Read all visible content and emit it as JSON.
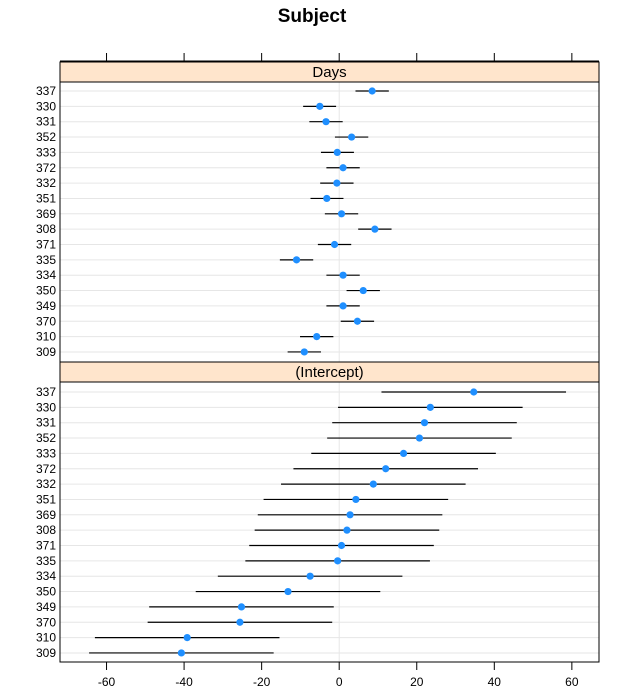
{
  "chart_data": {
    "type": "dotplot-with-intervals",
    "title": "Subject",
    "xlim": [
      -72,
      67
    ],
    "x_ticks": [
      -60,
      -40,
      -20,
      0,
      20,
      40,
      60
    ],
    "x_tick_labels": [
      "-60",
      "-40",
      "-20",
      "0",
      "20",
      "40",
      "60"
    ],
    "subjects": [
      "337",
      "330",
      "331",
      "352",
      "333",
      "372",
      "332",
      "351",
      "369",
      "308",
      "371",
      "335",
      "334",
      "350",
      "349",
      "370",
      "310",
      "309"
    ],
    "panels": [
      {
        "name": "Days",
        "points": [
          {
            "subject": "337",
            "value": 8.5,
            "lower": 4.2,
            "upper": 12.8
          },
          {
            "subject": "330",
            "value": -5.0,
            "lower": -9.3,
            "upper": -0.8
          },
          {
            "subject": "331",
            "value": -3.4,
            "lower": -7.7,
            "upper": 0.9
          },
          {
            "subject": "352",
            "value": 3.2,
            "lower": -1.1,
            "upper": 7.5
          },
          {
            "subject": "333",
            "value": -0.5,
            "lower": -4.7,
            "upper": 3.8
          },
          {
            "subject": "372",
            "value": 1.0,
            "lower": -3.3,
            "upper": 5.3
          },
          {
            "subject": "332",
            "value": -0.6,
            "lower": -4.9,
            "upper": 3.7
          },
          {
            "subject": "351",
            "value": -3.2,
            "lower": -7.4,
            "upper": 1.1
          },
          {
            "subject": "369",
            "value": 0.6,
            "lower": -3.7,
            "upper": 4.9
          },
          {
            "subject": "308",
            "value": 9.2,
            "lower": 4.9,
            "upper": 13.5
          },
          {
            "subject": "371",
            "value": -1.2,
            "lower": -5.5,
            "upper": 3.1
          },
          {
            "subject": "335",
            "value": -11.0,
            "lower": -15.3,
            "upper": -6.7
          },
          {
            "subject": "334",
            "value": 1.0,
            "lower": -3.3,
            "upper": 5.3
          },
          {
            "subject": "350",
            "value": 6.2,
            "lower": 1.9,
            "upper": 10.5
          },
          {
            "subject": "349",
            "value": 1.0,
            "lower": -3.3,
            "upper": 5.3
          },
          {
            "subject": "370",
            "value": 4.7,
            "lower": 0.4,
            "upper": 9.0
          },
          {
            "subject": "310",
            "value": -5.8,
            "lower": -10.1,
            "upper": -1.5
          },
          {
            "subject": "309",
            "value": -9.0,
            "lower": -13.3,
            "upper": -4.7
          }
        ]
      },
      {
        "name": "(Intercept)",
        "points": [
          {
            "subject": "337",
            "value": 34.7,
            "lower": 10.9,
            "upper": 58.5
          },
          {
            "subject": "330",
            "value": 23.5,
            "lower": -0.3,
            "upper": 47.3
          },
          {
            "subject": "331",
            "value": 22.0,
            "lower": -1.8,
            "upper": 45.8
          },
          {
            "subject": "352",
            "value": 20.7,
            "lower": -3.1,
            "upper": 44.5
          },
          {
            "subject": "333",
            "value": 16.6,
            "lower": -7.2,
            "upper": 40.4
          },
          {
            "subject": "372",
            "value": 12.0,
            "lower": -11.8,
            "upper": 35.8
          },
          {
            "subject": "332",
            "value": 8.8,
            "lower": -15.0,
            "upper": 32.6
          },
          {
            "subject": "351",
            "value": 4.3,
            "lower": -19.5,
            "upper": 28.1
          },
          {
            "subject": "369",
            "value": 2.8,
            "lower": -21.0,
            "upper": 26.6
          },
          {
            "subject": "308",
            "value": 2.0,
            "lower": -21.8,
            "upper": 25.8
          },
          {
            "subject": "371",
            "value": 0.6,
            "lower": -23.2,
            "upper": 24.4
          },
          {
            "subject": "335",
            "value": -0.4,
            "lower": -24.2,
            "upper": 23.4
          },
          {
            "subject": "334",
            "value": -7.5,
            "lower": -31.3,
            "upper": 16.3
          },
          {
            "subject": "350",
            "value": -13.2,
            "lower": -37.0,
            "upper": 10.6
          },
          {
            "subject": "349",
            "value": -25.2,
            "lower": -49.0,
            "upper": -1.4
          },
          {
            "subject": "370",
            "value": -25.6,
            "lower": -49.4,
            "upper": -1.8
          },
          {
            "subject": "310",
            "value": -39.2,
            "lower": -63.0,
            "upper": -15.4
          },
          {
            "subject": "309",
            "value": -40.7,
            "lower": -64.5,
            "upper": -16.9
          }
        ]
      }
    ],
    "colors": {
      "point": "#1f8fff",
      "interval": "#000000",
      "strip": "#ffe5cc",
      "grid": "#e6e6e6",
      "zero_line": "#e6e6e6"
    }
  }
}
